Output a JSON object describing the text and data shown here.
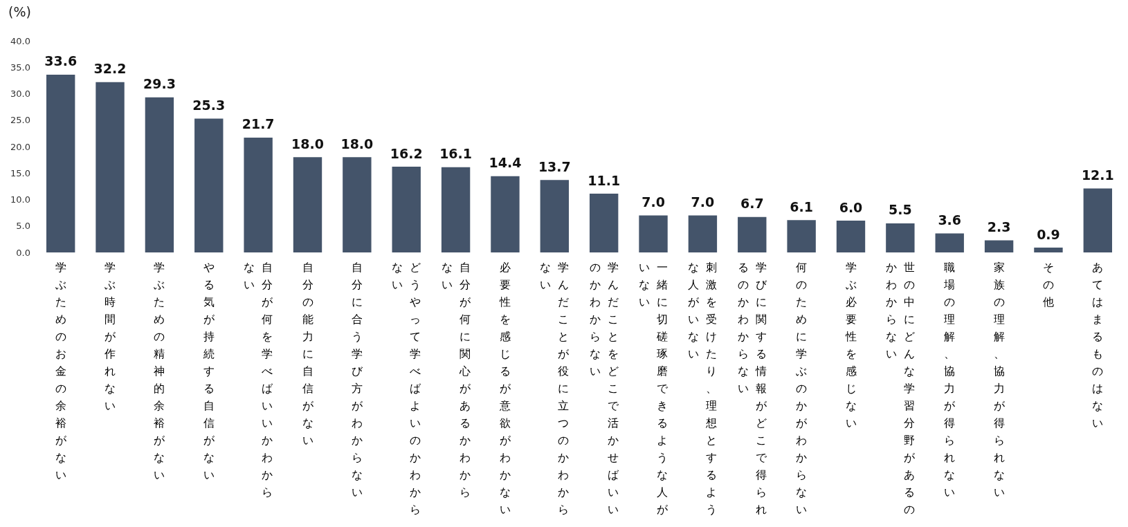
{
  "chart_data": {
    "type": "bar",
    "ylabel": "(%)",
    "categories": [
      "学ぶためのお金の余裕がない",
      "学ぶ時間が作れない",
      "学ぶための精神的余裕がない",
      "やる気が持続する自信がない",
      "自分が何を学べばいいかわからない",
      "自分の能力に自信がない",
      "自分に合う学び方がわからない",
      "どうやって学べばよいのかわからない",
      "自分が何に関心があるかわからない",
      "必要性を感じるが意欲がわかない",
      "学んだことが役に立つのかわからない",
      "学んだことをどこで活かせばいいのかわからない",
      "一緒に切磋琢磨できるような人がいない",
      "刺激を受けたり、理想とするような人がいない",
      "学びに関する情報がどこで得られるのかわからない",
      "何のために学ぶのかがわからない",
      "学ぶ必要性を感じない",
      "世の中にどんな学習分野があるのかわからない",
      "職場の理解、協力が得られない",
      "家族の理解、協力が得られない",
      "その他",
      "あてはまるものはない"
    ],
    "values": [
      33.6,
      32.2,
      29.3,
      25.3,
      21.7,
      18.0,
      18.0,
      16.2,
      16.1,
      14.4,
      13.7,
      11.1,
      7.0,
      7.0,
      6.7,
      6.1,
      6.0,
      5.5,
      3.6,
      2.3,
      0.9,
      12.1
    ],
    "value_labels": [
      "33.6",
      "32.2",
      "29.3",
      "25.3",
      "21.7",
      "18.0",
      "18.0",
      "16.2",
      "16.1",
      "14.4",
      "13.7",
      "11.1",
      "7.0",
      "7.0",
      "6.7",
      "6.1",
      "6.0",
      "5.5",
      "3.6",
      "2.3",
      "0.9",
      "12.1"
    ],
    "color": "#44546a",
    "ylim": [
      0,
      40
    ],
    "yticks": [
      {
        "value": 0,
        "label": "0.0"
      },
      {
        "value": 5,
        "label": "5.0"
      },
      {
        "value": 10,
        "label": "10.0"
      },
      {
        "value": 15,
        "label": "15.0"
      },
      {
        "value": 20,
        "label": "20.0"
      },
      {
        "value": 25,
        "label": "25.0"
      },
      {
        "value": 30,
        "label": "30.0"
      },
      {
        "value": 35,
        "label": "35.0"
      },
      {
        "value": 40,
        "label": "40.0"
      }
    ],
    "grid": false
  }
}
